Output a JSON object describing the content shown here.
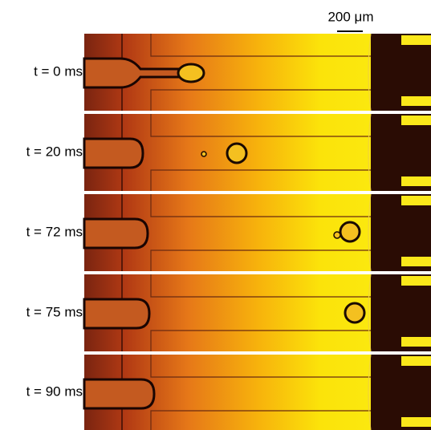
{
  "scale_bar": {
    "label": "200 μm"
  },
  "frames": [
    {
      "label": "t = 0 ms"
    },
    {
      "label": "t = 20 ms"
    },
    {
      "label": "t = 72 ms"
    },
    {
      "label": "t = 75 ms"
    },
    {
      "label": "t = 90 ms"
    }
  ]
}
